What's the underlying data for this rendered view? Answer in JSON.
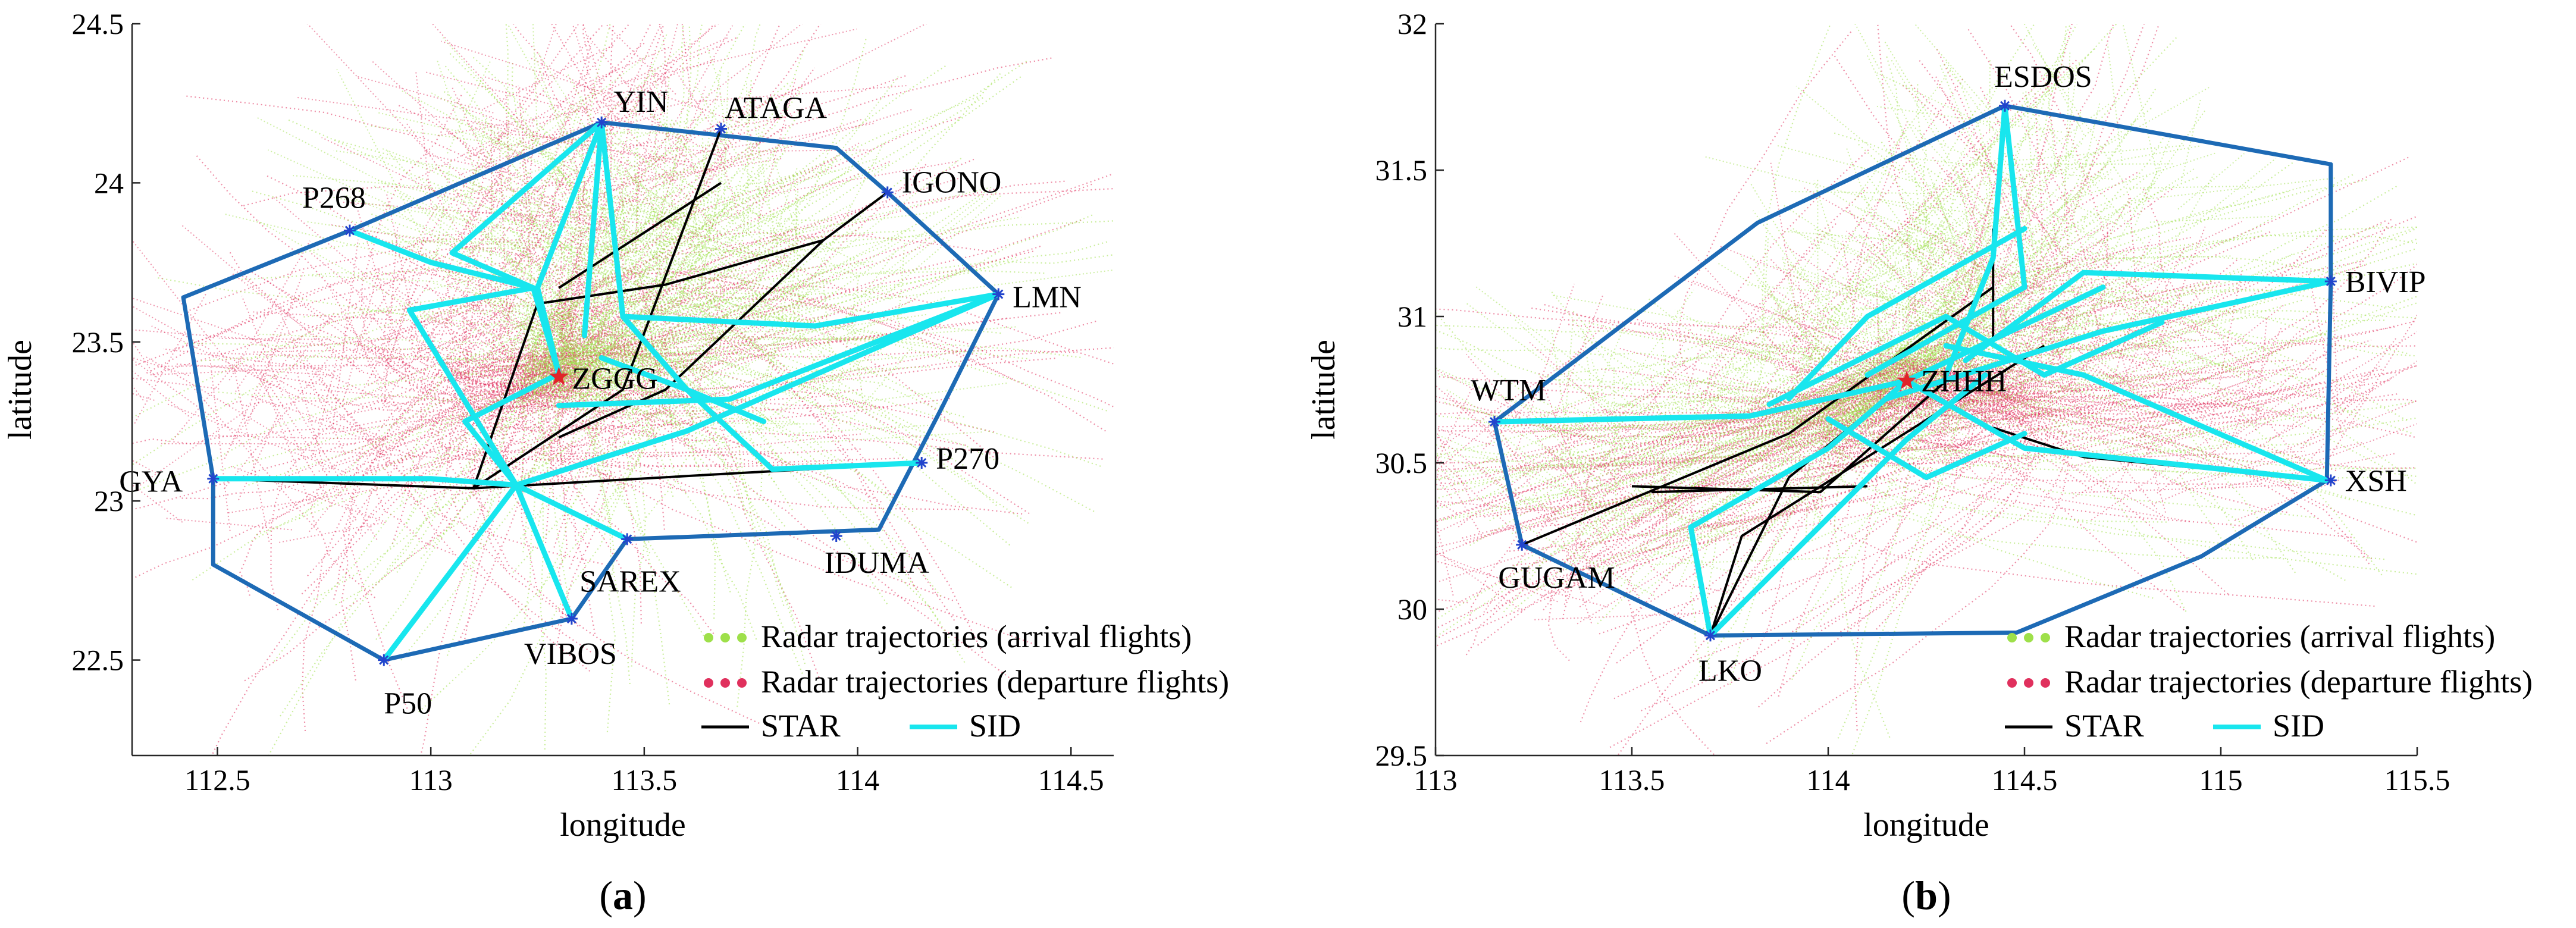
{
  "chart_data": [
    {
      "type": "line",
      "panel_label": {
        "open": "(",
        "letter": "a",
        "close": ")"
      },
      "xlabel": "longitude",
      "ylabel": "latitude",
      "xlim": [
        112.3,
        114.6
      ],
      "ylim": [
        22.2,
        24.5
      ],
      "xticks": [
        112.5,
        113,
        113.5,
        114,
        114.5
      ],
      "xtick_labels": [
        "112.5",
        "113",
        "113.5",
        "114",
        "114.5"
      ],
      "yticks": [
        22.5,
        23,
        23.5,
        24,
        24.5
      ],
      "ytick_labels": [
        "22.5",
        "23",
        "23.5",
        "24",
        "24.5"
      ],
      "airport": {
        "name": "ZGGG",
        "lon": 113.3,
        "lat": 23.39
      },
      "waypoints": [
        {
          "name": "YIN",
          "lon": 113.4,
          "lat": 24.19
        },
        {
          "name": "ATAGA",
          "lon": 113.68,
          "lat": 24.17
        },
        {
          "name": "IGONO",
          "lon": 114.07,
          "lat": 23.97
        },
        {
          "name": "P268",
          "lon": 112.81,
          "lat": 23.85
        },
        {
          "name": "LMN",
          "lon": 114.33,
          "lat": 23.65
        },
        {
          "name": "GYA",
          "lon": 112.49,
          "lat": 23.07
        },
        {
          "name": "P270",
          "lon": 114.15,
          "lat": 23.12
        },
        {
          "name": "IDUMA",
          "lon": 113.95,
          "lat": 22.89
        },
        {
          "name": "SAREX",
          "lon": 113.46,
          "lat": 22.88
        },
        {
          "name": "VIBOS",
          "lon": 113.33,
          "lat": 22.63
        },
        {
          "name": "P50",
          "lon": 112.89,
          "lat": 22.5
        }
      ],
      "sector_boundary": [
        [
          112.81,
          23.85
        ],
        [
          113.4,
          24.19
        ],
        [
          113.95,
          24.11
        ],
        [
          114.07,
          23.97
        ],
        [
          114.33,
          23.65
        ],
        [
          114.2,
          23.3
        ],
        [
          114.05,
          22.91
        ],
        [
          113.46,
          22.88
        ],
        [
          113.33,
          22.63
        ],
        [
          112.89,
          22.5
        ],
        [
          112.49,
          22.8
        ],
        [
          112.49,
          23.07
        ],
        [
          112.42,
          23.64
        ],
        [
          112.81,
          23.85
        ]
      ],
      "star_routes": [
        [
          [
            112.49,
            23.07
          ],
          [
            113.1,
            23.04
          ],
          [
            113.62,
            23.08
          ],
          [
            114.15,
            23.12
          ]
        ],
        [
          [
            113.68,
            24.17
          ],
          [
            113.45,
            23.35
          ],
          [
            113.1,
            23.04
          ]
        ],
        [
          [
            114.07,
            23.97
          ],
          [
            113.92,
            23.82
          ],
          [
            113.55,
            23.68
          ],
          [
            113.25,
            23.62
          ]
        ],
        [
          [
            113.92,
            23.82
          ],
          [
            113.55,
            23.35
          ],
          [
            113.3,
            23.2
          ]
        ],
        [
          [
            113.25,
            23.62
          ],
          [
            113.1,
            23.04
          ]
        ],
        [
          [
            113.68,
            24.0
          ],
          [
            113.3,
            23.67
          ]
        ]
      ],
      "sid_routes": [
        [
          [
            112.81,
            23.85
          ],
          [
            113.0,
            23.75
          ],
          [
            113.24,
            23.67
          ],
          [
            113.3,
            23.4
          ]
        ],
        [
          [
            113.4,
            24.19
          ],
          [
            113.25,
            23.67
          ],
          [
            113.3,
            23.4
          ]
        ],
        [
          [
            113.4,
            24.19
          ],
          [
            113.45,
            23.58
          ],
          [
            113.6,
            23.35
          ]
        ],
        [
          [
            113.4,
            24.19
          ],
          [
            113.05,
            23.78
          ],
          [
            113.24,
            23.67
          ]
        ],
        [
          [
            113.4,
            24.19
          ],
          [
            113.36,
            23.52
          ]
        ],
        [
          [
            114.33,
            23.65
          ],
          [
            113.9,
            23.55
          ],
          [
            113.45,
            23.58
          ]
        ],
        [
          [
            114.33,
            23.65
          ],
          [
            113.7,
            23.32
          ],
          [
            113.3,
            23.3
          ]
        ],
        [
          [
            114.33,
            23.65
          ],
          [
            113.6,
            23.22
          ],
          [
            113.2,
            23.05
          ]
        ],
        [
          [
            114.15,
            23.12
          ],
          [
            113.8,
            23.1
          ],
          [
            113.6,
            23.35
          ],
          [
            113.4,
            23.45
          ]
        ],
        [
          [
            112.49,
            23.07
          ],
          [
            113.0,
            23.07
          ],
          [
            113.2,
            23.05
          ]
        ],
        [
          [
            113.2,
            23.05
          ],
          [
            112.89,
            22.5
          ]
        ],
        [
          [
            113.2,
            23.05
          ],
          [
            113.33,
            22.63
          ]
        ],
        [
          [
            113.2,
            23.05
          ],
          [
            113.46,
            22.88
          ]
        ],
        [
          [
            113.2,
            23.05
          ],
          [
            113.08,
            23.25
          ],
          [
            113.3,
            23.4
          ]
        ],
        [
          [
            113.2,
            23.05
          ],
          [
            112.95,
            23.6
          ],
          [
            113.24,
            23.67
          ]
        ],
        [
          [
            113.45,
            23.58
          ],
          [
            113.6,
            23.35
          ],
          [
            113.78,
            23.25
          ]
        ]
      ],
      "trajectory_hubs": {
        "arrival": [
          [
            113.5,
            23.6
          ],
          [
            113.7,
            23.5
          ],
          [
            113.3,
            23.8
          ]
        ],
        "departure": [
          [
            112.7,
            23.2
          ],
          [
            113.4,
            24.0
          ],
          [
            113.2,
            23.3
          ]
        ]
      },
      "colors": {
        "arrival": "#9ee04a",
        "departure": "#e0305d",
        "star": "#000000",
        "sid": "#18e6ee",
        "boundary": "#1d6ab5",
        "airport": "#e0242a",
        "waypoint": "#2244cc"
      },
      "legend": {
        "position": "bottom-right",
        "entries": [
          {
            "label": "Radar trajectories (arrival flights)",
            "style": "dots",
            "color": "#9ee04a"
          },
          {
            "label": "Radar trajectories (departure flights)",
            "style": "dots",
            "color": "#e0305d"
          },
          {
            "label": "STAR",
            "style": "line",
            "color": "#000000"
          },
          {
            "label": "SID",
            "style": "line",
            "color": "#18e6ee"
          }
        ]
      }
    },
    {
      "type": "line",
      "panel_label": {
        "open": "(",
        "letter": "b",
        "close": ")"
      },
      "xlabel": "longitude",
      "ylabel": "latitude",
      "xlim": [
        113,
        115.5
      ],
      "ylim": [
        29.5,
        32
      ],
      "xticks": [
        113,
        113.5,
        114,
        114.5,
        115,
        115.5
      ],
      "xtick_labels": [
        "113",
        "113.5",
        "114",
        "114.5",
        "115",
        "115.5"
      ],
      "yticks": [
        29.5,
        30,
        30.5,
        31,
        31.5,
        32
      ],
      "ytick_labels": [
        "29.5",
        "30",
        "30.5",
        "31",
        "31.5",
        "32"
      ],
      "airport": {
        "name": "ZHHH",
        "lon": 114.2,
        "lat": 30.78
      },
      "waypoints": [
        {
          "name": "ESDOS",
          "lon": 114.45,
          "lat": 31.72
        },
        {
          "name": "BIVIP",
          "lon": 115.28,
          "lat": 31.12
        },
        {
          "name": "WTM",
          "lon": 113.15,
          "lat": 30.64
        },
        {
          "name": "XSH",
          "lon": 115.28,
          "lat": 30.44
        },
        {
          "name": "GUGAM",
          "lon": 113.22,
          "lat": 30.22
        },
        {
          "name": "LKO",
          "lon": 113.7,
          "lat": 29.91
        }
      ],
      "sector_boundary": [
        [
          113.15,
          30.64
        ],
        [
          113.82,
          31.32
        ],
        [
          114.45,
          31.72
        ],
        [
          115.28,
          31.52
        ],
        [
          115.28,
          31.12
        ],
        [
          115.27,
          30.44
        ],
        [
          114.95,
          30.18
        ],
        [
          114.48,
          29.92
        ],
        [
          113.7,
          29.91
        ],
        [
          113.22,
          30.22
        ],
        [
          113.15,
          30.64
        ]
      ],
      "star_routes": [
        [
          [
            113.22,
            30.22
          ],
          [
            113.9,
            30.6
          ],
          [
            114.42,
            31.1
          ]
        ],
        [
          [
            113.5,
            30.42
          ],
          [
            113.98,
            30.4
          ],
          [
            114.3,
            30.78
          ]
        ],
        [
          [
            113.7,
            29.91
          ],
          [
            113.9,
            30.45
          ],
          [
            114.2,
            30.78
          ]
        ],
        [
          [
            113.7,
            29.91
          ],
          [
            113.78,
            30.25
          ],
          [
            114.55,
            30.9
          ]
        ],
        [
          [
            114.42,
            31.3
          ],
          [
            114.42,
            30.9
          ]
        ],
        [
          [
            115.27,
            30.44
          ],
          [
            114.65,
            30.52
          ],
          [
            114.42,
            30.62
          ]
        ],
        [
          [
            113.55,
            30.4
          ],
          [
            114.1,
            30.42
          ]
        ]
      ],
      "sid_routes": [
        [
          [
            114.45,
            31.72
          ],
          [
            114.42,
            31.2
          ],
          [
            114.3,
            30.8
          ]
        ],
        [
          [
            114.45,
            31.72
          ],
          [
            114.5,
            31.1
          ],
          [
            114.1,
            30.8
          ]
        ],
        [
          [
            115.28,
            31.12
          ],
          [
            114.65,
            31.15
          ],
          [
            114.35,
            30.85
          ]
        ],
        [
          [
            115.28,
            31.12
          ],
          [
            114.7,
            30.95
          ],
          [
            114.15,
            30.72
          ]
        ],
        [
          [
            113.15,
            30.64
          ],
          [
            113.8,
            30.66
          ],
          [
            114.2,
            30.78
          ]
        ],
        [
          [
            115.27,
            30.44
          ],
          [
            114.5,
            30.55
          ],
          [
            114.2,
            30.78
          ]
        ],
        [
          [
            115.27,
            30.44
          ],
          [
            114.65,
            30.8
          ],
          [
            114.3,
            30.9
          ]
        ],
        [
          [
            113.7,
            29.91
          ],
          [
            113.65,
            30.28
          ],
          [
            114.0,
            30.55
          ],
          [
            114.2,
            30.78
          ]
        ],
        [
          [
            113.7,
            29.91
          ],
          [
            114.2,
            30.58
          ],
          [
            114.4,
            30.8
          ]
        ],
        [
          [
            114.2,
            30.78
          ],
          [
            114.7,
            31.1
          ]
        ],
        [
          [
            113.9,
            30.72
          ],
          [
            114.1,
            31.0
          ],
          [
            114.5,
            31.3
          ]
        ],
        [
          [
            114.0,
            30.65
          ],
          [
            114.25,
            30.45
          ],
          [
            114.5,
            30.6
          ]
        ],
        [
          [
            113.85,
            30.7
          ],
          [
            114.3,
            31.0
          ],
          [
            114.55,
            30.8
          ],
          [
            114.85,
            30.98
          ]
        ]
      ],
      "trajectory_hubs": {
        "arrival": [
          [
            114.2,
            30.9
          ],
          [
            113.6,
            30.4
          ],
          [
            114.5,
            31.3
          ]
        ],
        "departure": [
          [
            114.3,
            30.8
          ],
          [
            113.3,
            30.3
          ],
          [
            114.9,
            30.6
          ]
        ]
      },
      "colors": {
        "arrival": "#9ee04a",
        "departure": "#e0305d",
        "star": "#000000",
        "sid": "#18e6ee",
        "boundary": "#1d6ab5",
        "airport": "#e0242a",
        "waypoint": "#2244cc"
      },
      "legend": {
        "position": "bottom-right",
        "entries": [
          {
            "label": "Radar trajectories (arrival flights)",
            "style": "dots",
            "color": "#9ee04a"
          },
          {
            "label": "Radar trajectories (departure flights)",
            "style": "dots",
            "color": "#e0305d"
          },
          {
            "label": "STAR",
            "style": "line",
            "color": "#000000"
          },
          {
            "label": "SID",
            "style": "line",
            "color": "#18e6ee"
          }
        ]
      }
    }
  ]
}
